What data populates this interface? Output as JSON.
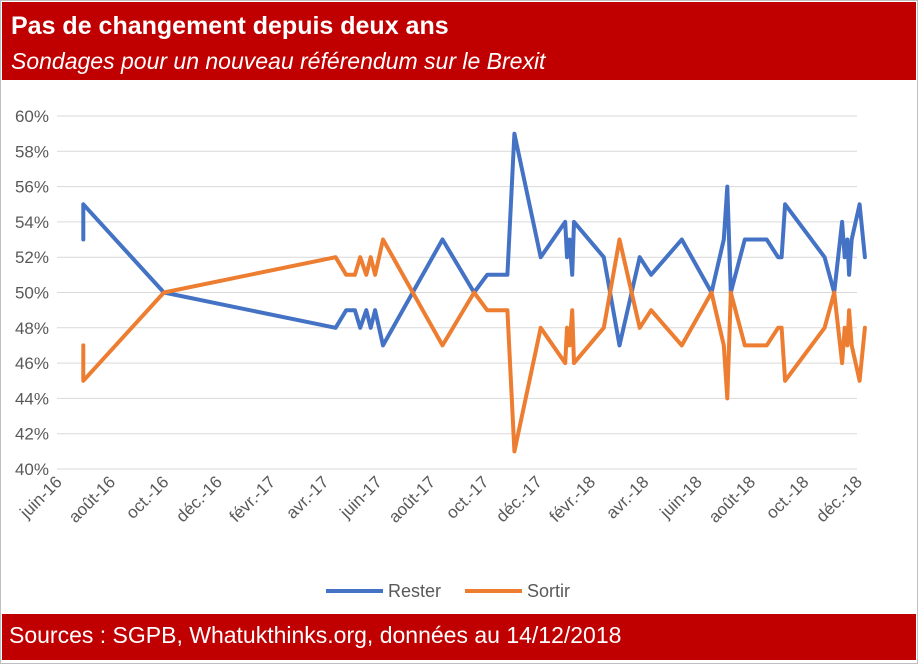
{
  "header": {
    "title": "Pas de changement depuis deux ans",
    "subtitle": "Sondages pour un nouveau référendum sur le Brexit"
  },
  "footer": {
    "source": "Sources : SGPB, Whatukthinks.org, données au 14/12/2018"
  },
  "chart_data": {
    "type": "line",
    "x_start": "2016-06-01",
    "x_end": "2018-12-01",
    "xlim": [
      "2016-06-01",
      "2018-12-01"
    ],
    "ylim": [
      40,
      60
    ],
    "y_ticks": [
      "40%",
      "42%",
      "44%",
      "46%",
      "48%",
      "50%",
      "52%",
      "54%",
      "56%",
      "58%",
      "60%"
    ],
    "x_tick_labels": [
      "juin-16",
      "août-16",
      "oct.-16",
      "déc.-16",
      "févr.-17",
      "avr.-17",
      "juin-17",
      "août-17",
      "oct.-17",
      "déc.-17",
      "févr.-18",
      "avr.-18",
      "juin-18",
      "août-18",
      "oct.-18",
      "déc.-18"
    ],
    "grid": true,
    "legend_position": "bottom",
    "series": [
      {
        "name": "Rester",
        "color": "#4472c4",
        "points": [
          [
            "2016-07-01",
            53
          ],
          [
            "2016-07-01",
            55
          ],
          [
            "2016-10-01",
            50
          ],
          [
            "2017-04-15",
            48
          ],
          [
            "2017-04-27",
            49
          ],
          [
            "2017-05-07",
            49
          ],
          [
            "2017-05-13",
            48
          ],
          [
            "2017-05-20",
            49
          ],
          [
            "2017-05-25",
            48
          ],
          [
            "2017-05-30",
            49
          ],
          [
            "2017-06-08",
            47
          ],
          [
            "2017-08-15",
            53
          ],
          [
            "2017-09-20",
            50
          ],
          [
            "2017-10-05",
            51
          ],
          [
            "2017-10-28",
            51
          ],
          [
            "2017-11-05",
            59
          ],
          [
            "2017-12-05",
            52
          ],
          [
            "2018-01-02",
            54
          ],
          [
            "2018-01-04",
            52
          ],
          [
            "2018-01-07",
            53
          ],
          [
            "2018-01-10",
            51
          ],
          [
            "2018-01-12",
            54
          ],
          [
            "2018-02-15",
            52
          ],
          [
            "2018-03-05",
            47
          ],
          [
            "2018-03-28",
            52
          ],
          [
            "2018-04-10",
            51
          ],
          [
            "2018-05-15",
            53
          ],
          [
            "2018-06-18",
            50
          ],
          [
            "2018-07-02",
            53
          ],
          [
            "2018-07-06",
            56
          ],
          [
            "2018-07-10",
            50
          ],
          [
            "2018-07-26",
            53
          ],
          [
            "2018-08-20",
            53
          ],
          [
            "2018-09-02",
            52
          ],
          [
            "2018-09-06",
            52
          ],
          [
            "2018-09-10",
            55
          ],
          [
            "2018-10-25",
            52
          ],
          [
            "2018-11-05",
            50
          ],
          [
            "2018-11-14",
            54
          ],
          [
            "2018-11-17",
            52
          ],
          [
            "2018-11-20",
            53
          ],
          [
            "2018-11-22",
            51
          ],
          [
            "2018-11-25",
            53
          ],
          [
            "2018-12-04",
            55
          ],
          [
            "2018-12-10",
            52
          ]
        ]
      },
      {
        "name": "Sortir",
        "color": "#ed7d31",
        "points": [
          [
            "2016-07-01",
            47
          ],
          [
            "2016-07-01",
            45
          ],
          [
            "2016-10-01",
            50
          ],
          [
            "2017-04-15",
            52
          ],
          [
            "2017-04-27",
            51
          ],
          [
            "2017-05-07",
            51
          ],
          [
            "2017-05-13",
            52
          ],
          [
            "2017-05-20",
            51
          ],
          [
            "2017-05-25",
            52
          ],
          [
            "2017-05-30",
            51
          ],
          [
            "2017-06-08",
            53
          ],
          [
            "2017-08-15",
            47
          ],
          [
            "2017-09-20",
            50
          ],
          [
            "2017-10-05",
            49
          ],
          [
            "2017-10-28",
            49
          ],
          [
            "2017-11-05",
            41
          ],
          [
            "2017-12-05",
            48
          ],
          [
            "2018-01-02",
            46
          ],
          [
            "2018-01-04",
            48
          ],
          [
            "2018-01-07",
            47
          ],
          [
            "2018-01-10",
            49
          ],
          [
            "2018-01-12",
            46
          ],
          [
            "2018-02-15",
            48
          ],
          [
            "2018-03-05",
            53
          ],
          [
            "2018-03-28",
            48
          ],
          [
            "2018-04-10",
            49
          ],
          [
            "2018-05-15",
            47
          ],
          [
            "2018-06-18",
            50
          ],
          [
            "2018-07-02",
            47
          ],
          [
            "2018-07-06",
            44
          ],
          [
            "2018-07-10",
            50
          ],
          [
            "2018-07-26",
            47
          ],
          [
            "2018-08-20",
            47
          ],
          [
            "2018-09-02",
            48
          ],
          [
            "2018-09-06",
            48
          ],
          [
            "2018-09-10",
            45
          ],
          [
            "2018-10-25",
            48
          ],
          [
            "2018-11-05",
            50
          ],
          [
            "2018-11-14",
            46
          ],
          [
            "2018-11-17",
            48
          ],
          [
            "2018-11-20",
            47
          ],
          [
            "2018-11-22",
            49
          ],
          [
            "2018-11-25",
            47
          ],
          [
            "2018-12-04",
            45
          ],
          [
            "2018-12-10",
            48
          ]
        ]
      }
    ]
  }
}
